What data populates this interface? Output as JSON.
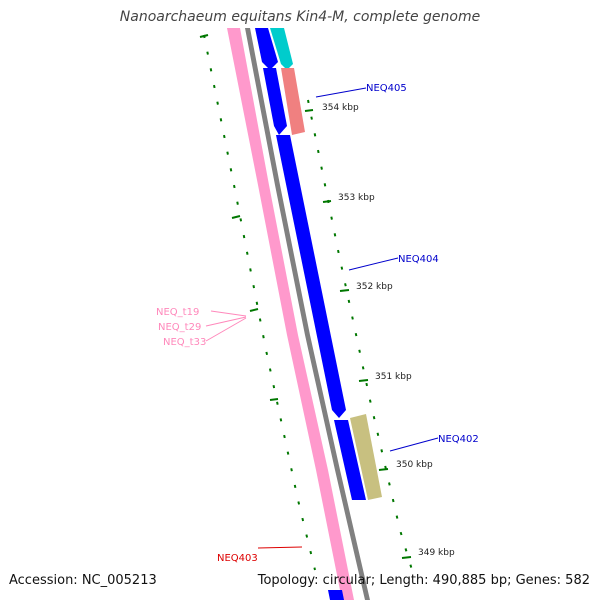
{
  "title": "Nanoarchaeum equitans Kin4-M, complete genome",
  "accession": "Accession: NC_005213",
  "summary": "Topology: circular; Length: 490,885 bp; Genes: 582",
  "colors": {
    "pink_strand": "#ff99cc",
    "grey_backbone": "#808080",
    "cds": "#0000ff",
    "cyan_feature": "#00cccc",
    "salmon_feature": "#f08080",
    "khaki_feature": "#c8c080",
    "ticks": "#007700",
    "label_blue": "#0000cc",
    "label_pink": "#ff88bb",
    "label_red": "#dd0000"
  },
  "scale_ticks": [
    "354 kbp",
    "353 kbp",
    "352 kbp",
    "351 kbp",
    "350 kbp",
    "349 kbp"
  ],
  "gene_labels": [
    {
      "text": "NEQ405",
      "color": "label_blue"
    },
    {
      "text": "NEQ404",
      "color": "label_blue"
    },
    {
      "text": "NEQ402",
      "color": "label_blue"
    },
    {
      "text": "NEQ403",
      "color": "label_red"
    }
  ],
  "trna_labels": [
    "NEQ_t19",
    "NEQ_t29",
    "NEQ_t33"
  ]
}
